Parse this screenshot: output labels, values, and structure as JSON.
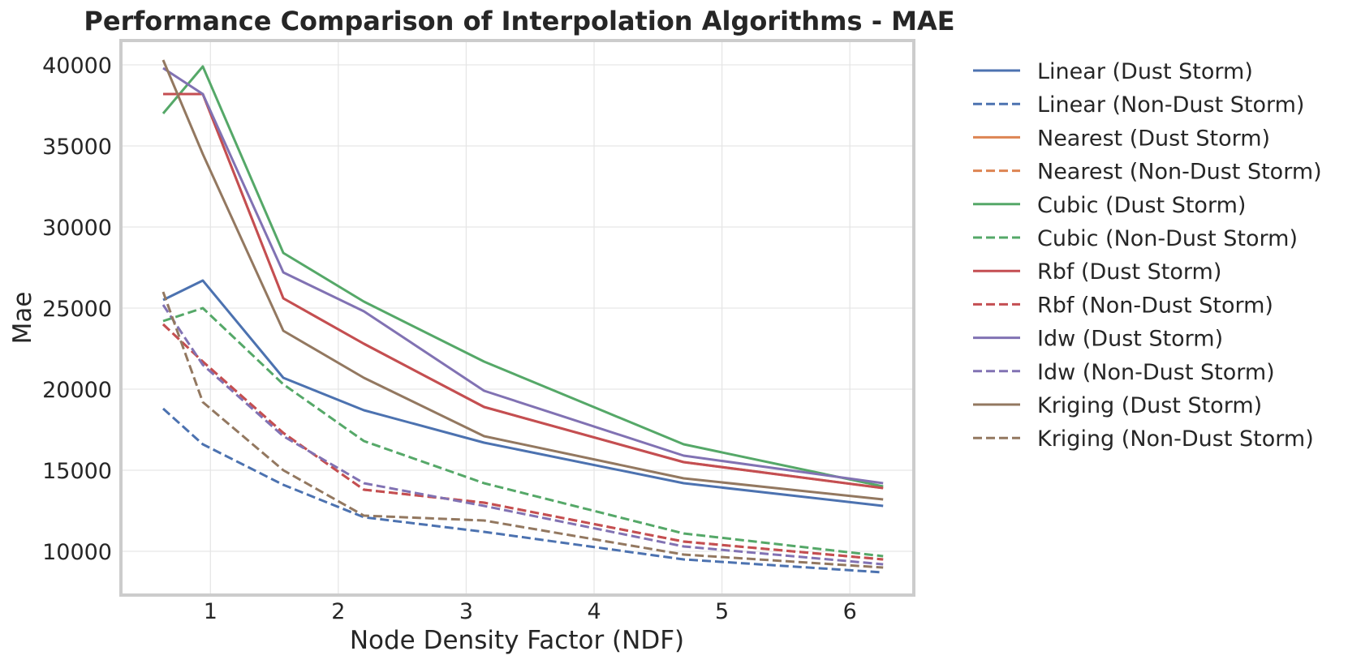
{
  "chart_data": {
    "type": "line",
    "title": "Performance Comparison of Interpolation Algorithms - MAE",
    "xlabel": "Node Density Factor (NDF)",
    "ylabel": "Mae",
    "xlim": [
      0.3,
      6.5
    ],
    "ylim": [
      7300,
      41500
    ],
    "xticks": [
      1,
      2,
      3,
      4,
      5,
      6
    ],
    "yticks": [
      10000,
      15000,
      20000,
      25000,
      30000,
      35000,
      40000
    ],
    "grid": true,
    "legend_position": "outside-right",
    "x": [
      0.63,
      0.94,
      1.57,
      2.2,
      3.14,
      4.7,
      6.26
    ],
    "series": [
      {
        "name": "Linear (Dust Storm)",
        "color": "#4c72b0",
        "dash": "solid",
        "values": [
          25500,
          26700,
          20700,
          18700,
          16700,
          14200,
          12800
        ]
      },
      {
        "name": "Linear (Non-Dust Storm)",
        "color": "#4c72b0",
        "dash": "dashed",
        "values": [
          18800,
          16600,
          14100,
          12100,
          11200,
          9500,
          8700
        ]
      },
      {
        "name": "Nearest (Dust Storm)",
        "color": "#dd8452",
        "dash": "solid",
        "values": [
          38200,
          38200,
          25600,
          22800,
          18900,
          15500,
          13900
        ]
      },
      {
        "name": "Nearest (Non-Dust Storm)",
        "color": "#dd8452",
        "dash": "dashed",
        "values": [
          24000,
          21700,
          17300,
          13800,
          13000,
          10600,
          9500
        ]
      },
      {
        "name": "Cubic (Dust Storm)",
        "color": "#55a868",
        "dash": "solid",
        "values": [
          37000,
          39900,
          28400,
          25400,
          21700,
          16600,
          14000
        ]
      },
      {
        "name": "Cubic (Non-Dust Storm)",
        "color": "#55a868",
        "dash": "dashed",
        "values": [
          24200,
          25000,
          20300,
          16800,
          14200,
          11100,
          9700
        ]
      },
      {
        "name": "Rbf (Dust Storm)",
        "color": "#c44e52",
        "dash": "solid",
        "values": [
          38200,
          38200,
          25600,
          22800,
          18900,
          15500,
          13900
        ]
      },
      {
        "name": "Rbf (Non-Dust Storm)",
        "color": "#c44e52",
        "dash": "dashed",
        "values": [
          24000,
          21700,
          17300,
          13800,
          13000,
          10600,
          9500
        ]
      },
      {
        "name": "Idw (Dust Storm)",
        "color": "#8172b3",
        "dash": "solid",
        "values": [
          39800,
          38200,
          27200,
          24800,
          19900,
          15900,
          14200
        ]
      },
      {
        "name": "Idw (Non-Dust Storm)",
        "color": "#8172b3",
        "dash": "dashed",
        "values": [
          25200,
          21500,
          17100,
          14200,
          12800,
          10300,
          9200
        ]
      },
      {
        "name": "Kriging (Dust Storm)",
        "color": "#937860",
        "dash": "solid",
        "values": [
          40300,
          34500,
          23600,
          20700,
          17100,
          14500,
          13200
        ]
      },
      {
        "name": "Kriging (Non-Dust Storm)",
        "color": "#937860",
        "dash": "dashed",
        "values": [
          26000,
          19200,
          15000,
          12200,
          11900,
          9800,
          9000
        ]
      }
    ]
  }
}
